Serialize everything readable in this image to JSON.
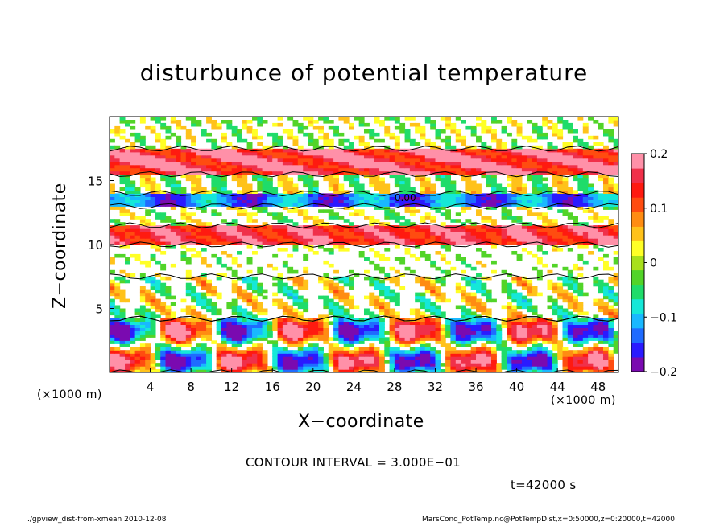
{
  "chart_data": {
    "type": "heatmap",
    "title": "disturbunce of potential temperature",
    "xlabel": "X−coordinate",
    "ylabel": "Z−coordinate",
    "x_unit": "(×1000 m)",
    "xlim": [
      0,
      50
    ],
    "ylim": [
      0,
      20
    ],
    "x_ticks": [
      "4",
      "8",
      "12",
      "16",
      "20",
      "24",
      "28",
      "32",
      "36",
      "40",
      "44",
      "48"
    ],
    "x_tick_values": [
      4,
      8,
      12,
      16,
      20,
      24,
      28,
      32,
      36,
      40,
      44,
      48
    ],
    "y_ticks": [
      "5",
      "10",
      "15"
    ],
    "y_tick_values": [
      5,
      10,
      15
    ],
    "colorbar": {
      "range": [
        -0.2,
        0.2
      ],
      "ticks": [
        "0.2",
        "0.1",
        "0",
        "−0.1",
        "−0.2"
      ],
      "tick_values": [
        0.2,
        0.1,
        0,
        -0.1,
        -0.2
      ],
      "colors": [
        "#7a0ab0",
        "#2a1aff",
        "#1f6bff",
        "#19b8ff",
        "#15e8d8",
        "#1fdc6a",
        "#52d428",
        "#a8e01b",
        "#ffff26",
        "#ffc21a",
        "#ff8c12",
        "#ff4c10",
        "#ff1a10",
        "#f0304a",
        "#ff90a8"
      ]
    },
    "contour_label": "0.00",
    "bands": [
      {
        "z": [
          0,
          4.2
        ],
        "pattern": "strong-oscillating",
        "min": -0.2,
        "max": 0.2
      },
      {
        "z": [
          4.2,
          7.5
        ],
        "pattern": "noisy",
        "min": -0.1,
        "max": 0.1
      },
      {
        "z": [
          10,
          11.5
        ],
        "pattern": "warm",
        "value": 0.15
      },
      {
        "z": [
          13,
          14
        ],
        "pattern": "cold",
        "value": -0.13
      },
      {
        "z": [
          15.5,
          17.5
        ],
        "pattern": "warm",
        "value": 0.16
      }
    ]
  },
  "annotations": {
    "contour_interval": "CONTOUR INTERVAL = 3.000E−01",
    "time": "t=42000 s",
    "footer_left": "./gpview_dist-from-xmean   2010-12-08",
    "footer_right": "MarsCond_PotTemp.nc@PotTempDist,x=0:50000,z=0:20000,t=42000"
  }
}
